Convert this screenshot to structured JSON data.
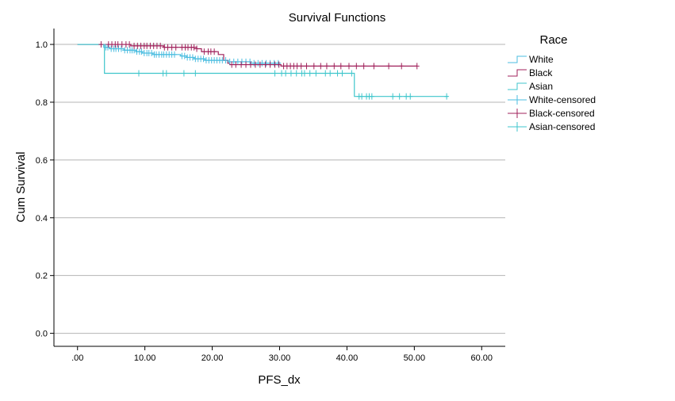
{
  "chart_data": {
    "type": "line",
    "title": "Survival Functions",
    "xlabel": "PFS_dx",
    "ylabel": "Cum Survival",
    "xlim": [
      -3.5,
      63.5
    ],
    "ylim": [
      -0.045,
      1.055
    ],
    "x_ticks": [
      0,
      10,
      20,
      30,
      40,
      50,
      60
    ],
    "x_tick_labels": [
      ".00",
      "10.00",
      "20.00",
      "30.00",
      "40.00",
      "50.00",
      "60.00"
    ],
    "y_ticks": [
      0,
      0.2,
      0.4,
      0.6,
      0.8,
      1.0
    ],
    "y_tick_labels": [
      "0.0",
      "0.2",
      "0.4",
      "0.6",
      "0.8",
      "1.0"
    ],
    "grid": "horizontal",
    "legend": {
      "title": "Race",
      "placement": "right",
      "entries": [
        "White",
        "Black",
        "Asian",
        "White-censored",
        "Black-censored",
        "Asian-censored"
      ]
    },
    "colors": {
      "White": "#4bbde0",
      "Black": "#a0215b",
      "Asian": "#3fc6cc"
    },
    "series": [
      {
        "name": "White",
        "color": "#4bbde0",
        "steps": [
          [
            0,
            1.0
          ],
          [
            3.9,
            0.99
          ],
          [
            4.8,
            0.985
          ],
          [
            6.9,
            0.98
          ],
          [
            8.7,
            0.975
          ],
          [
            9.6,
            0.97
          ],
          [
            11.2,
            0.965
          ],
          [
            15.3,
            0.96
          ],
          [
            16.2,
            0.955
          ],
          [
            17.3,
            0.95
          ],
          [
            18.9,
            0.945
          ],
          [
            22.4,
            0.94
          ],
          [
            25.7,
            0.935
          ],
          [
            30.2,
            0.935
          ]
        ],
        "end_x": 30.2,
        "censored": [
          4.2,
          4.5,
          5.0,
          5.4,
          5.7,
          6.1,
          6.5,
          7.0,
          7.4,
          7.8,
          8.1,
          8.4,
          8.8,
          9.2,
          9.5,
          9.9,
          10.3,
          10.6,
          11.0,
          11.4,
          11.7,
          12.1,
          12.5,
          12.8,
          13.2,
          13.6,
          14.0,
          14.4,
          15.5,
          15.9,
          16.3,
          16.7,
          17.1,
          17.5,
          17.9,
          18.3,
          18.7,
          19.1,
          19.5,
          19.9,
          20.3,
          20.7,
          21.1,
          21.5,
          22.0,
          22.6,
          23.2,
          23.8,
          24.4,
          25.0,
          25.6,
          26.2,
          26.8,
          27.4,
          28.0,
          28.6,
          29.2,
          29.8
        ]
      },
      {
        "name": "Black",
        "color": "#a0215b",
        "steps": [
          [
            0,
            1.0
          ],
          [
            7.9,
            0.995
          ],
          [
            12.8,
            0.99
          ],
          [
            17.7,
            0.985
          ],
          [
            18.4,
            0.975
          ],
          [
            20.9,
            0.965
          ],
          [
            21.7,
            0.945
          ],
          [
            22.3,
            0.935
          ],
          [
            22.6,
            0.93
          ],
          [
            30.2,
            0.925
          ]
        ],
        "end_x": 50.4,
        "censored": [
          3.5,
          4.6,
          5.1,
          5.6,
          6.0,
          6.6,
          7.2,
          7.7,
          8.4,
          8.9,
          9.4,
          9.9,
          10.3,
          10.8,
          11.3,
          11.8,
          12.3,
          12.9,
          13.4,
          14.0,
          14.6,
          15.5,
          16.0,
          16.4,
          16.9,
          17.3,
          17.7,
          18.8,
          19.4,
          19.8,
          20.3,
          22.9,
          23.5,
          24.3,
          25.0,
          25.7,
          26.4,
          27.1,
          27.9,
          28.6,
          29.3,
          29.9,
          30.6,
          31.1,
          31.6,
          32.1,
          32.6,
          33.2,
          34.0,
          35.1,
          36.1,
          37.0,
          38.1,
          39.1,
          40.3,
          41.4,
          42.5,
          44.0,
          46.2,
          48.1,
          50.4
        ]
      },
      {
        "name": "Asian",
        "color": "#3fc6cc",
        "steps": [
          [
            0,
            1.0
          ],
          [
            4.0,
            0.9
          ],
          [
            41.1,
            0.82
          ]
        ],
        "end_x": 55.0,
        "censored": [
          9.1,
          12.7,
          13.2,
          15.8,
          17.5,
          29.3,
          30.3,
          30.9,
          31.7,
          32.5,
          33.3,
          33.7,
          34.5,
          35.4,
          36.8,
          37.5,
          38.6,
          39.3,
          40.7,
          42.9,
          41.8,
          42.2,
          43.3,
          43.7,
          46.8,
          47.8,
          48.8,
          49.4,
          54.8
        ]
      }
    ]
  }
}
